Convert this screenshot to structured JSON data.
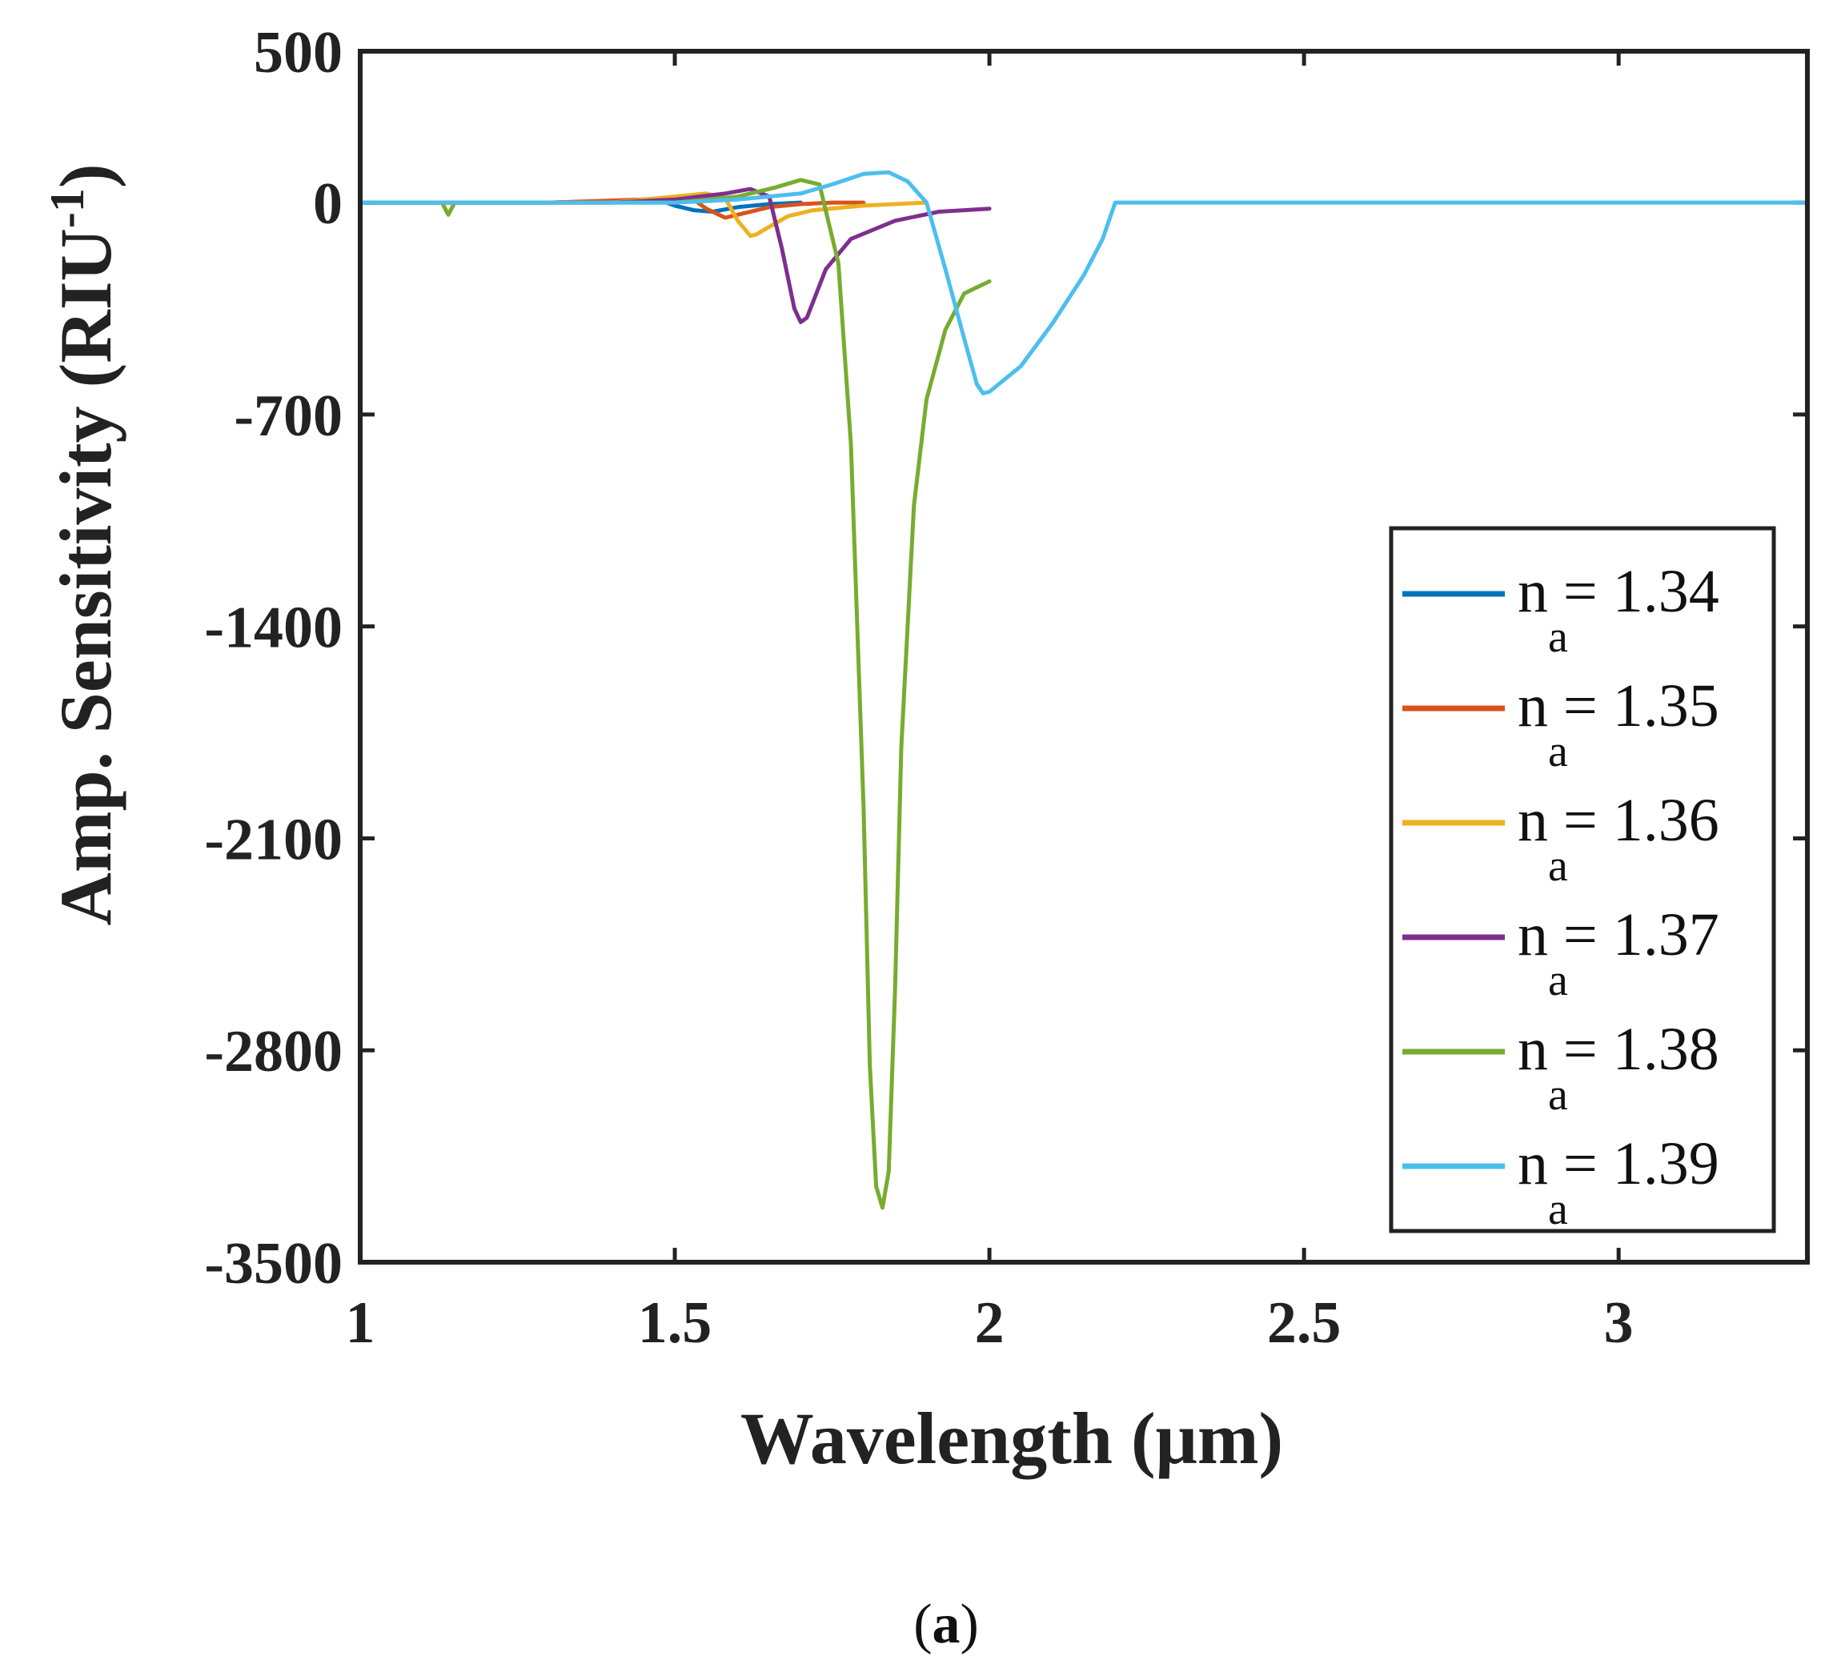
{
  "chart_data": {
    "type": "line",
    "xlabel": "Wavelength (μm)",
    "ylabel_main": "Amp. Sensitivity (RIU",
    "ylabel_sup": "-1",
    "ylabel_end": ")",
    "xlim": [
      1,
      3.3
    ],
    "ylim": [
      -3500,
      500
    ],
    "xticks": [
      1,
      1.5,
      2,
      2.5,
      3
    ],
    "xtick_labels": [
      "1",
      "1.5",
      "2",
      "2.5",
      "3"
    ],
    "yticks": [
      500,
      0,
      -700,
      -1400,
      -2100,
      -2800,
      -3500
    ],
    "ytick_labels": [
      "500",
      "0",
      "-700",
      "-1400",
      "-2100",
      "-2800",
      "-3500"
    ],
    "legend_position": "lower-right",
    "caption_open": "(",
    "caption_letter": "a",
    "caption_close": ")",
    "series": [
      {
        "name": "na = 1.34",
        "label_prefix": "n",
        "label_sub": "a",
        "label_suffix": "= 1.34",
        "color": "#0072BD",
        "x": [
          1.0,
          1.3,
          1.4,
          1.45,
          1.48,
          1.5,
          1.53,
          1.56,
          1.6,
          1.65,
          1.7
        ],
        "y": [
          0,
          0,
          5,
          10,
          5,
          -10,
          -25,
          -30,
          -15,
          -5,
          0
        ]
      },
      {
        "name": "na = 1.35",
        "label_prefix": "n",
        "label_sub": "a",
        "label_suffix": "= 1.35",
        "color": "#D95319",
        "x": [
          1.0,
          1.3,
          1.45,
          1.5,
          1.53,
          1.55,
          1.58,
          1.6,
          1.65,
          1.7,
          1.75,
          1.8
        ],
        "y": [
          0,
          0,
          10,
          18,
          10,
          -20,
          -50,
          -40,
          -15,
          -5,
          0,
          0
        ]
      },
      {
        "name": "na = 1.36",
        "label_prefix": "n",
        "label_sub": "a",
        "label_suffix": "= 1.36",
        "color": "#EDB120",
        "x": [
          1.0,
          1.4,
          1.5,
          1.55,
          1.58,
          1.6,
          1.62,
          1.63,
          1.65,
          1.68,
          1.72,
          1.8,
          1.9
        ],
        "y": [
          0,
          0,
          20,
          30,
          15,
          -60,
          -110,
          -105,
          -80,
          -45,
          -25,
          -10,
          0
        ]
      },
      {
        "name": "na = 1.37",
        "label_prefix": "n",
        "label_sub": "a",
        "label_suffix": "= 1.37",
        "color": "#7E2F8E",
        "x": [
          1.0,
          1.4,
          1.5,
          1.58,
          1.62,
          1.65,
          1.67,
          1.69,
          1.7,
          1.71,
          1.74,
          1.78,
          1.85,
          1.92,
          2.0
        ],
        "y": [
          0,
          0,
          10,
          30,
          45,
          20,
          -150,
          -350,
          -395,
          -380,
          -220,
          -120,
          -60,
          -30,
          -20
        ]
      },
      {
        "name": "na = 1.38",
        "label_prefix": "n",
        "label_sub": "a",
        "label_suffix": "= 1.38",
        "color": "#77AC30",
        "x": [
          1.0,
          1.13,
          1.14,
          1.15,
          1.5,
          1.6,
          1.66,
          1.7,
          1.73,
          1.76,
          1.78,
          1.8,
          1.81,
          1.82,
          1.83,
          1.84,
          1.85,
          1.86,
          1.88,
          1.9,
          1.93,
          1.96,
          2.0
        ],
        "y": [
          0,
          0,
          -40,
          0,
          0,
          20,
          50,
          75,
          60,
          -200,
          -800,
          -2000,
          -2850,
          -3250,
          -3320,
          -3200,
          -2600,
          -1800,
          -1000,
          -650,
          -420,
          -300,
          -260
        ]
      },
      {
        "name": "na = 1.39",
        "label_prefix": "n",
        "label_sub": "a",
        "label_suffix": "= 1.39",
        "color": "#4DBEEE",
        "x": [
          1.0,
          1.5,
          1.6,
          1.7,
          1.75,
          1.8,
          1.84,
          1.87,
          1.9,
          1.93,
          1.96,
          1.98,
          1.99,
          2.0,
          2.05,
          2.1,
          2.15,
          2.18,
          2.19,
          2.2,
          2.5,
          3.3
        ],
        "y": [
          0,
          0,
          10,
          30,
          60,
          95,
          100,
          70,
          0,
          -220,
          -450,
          -600,
          -630,
          -625,
          -540,
          -400,
          -240,
          -120,
          -60,
          0,
          0,
          0
        ]
      }
    ]
  }
}
